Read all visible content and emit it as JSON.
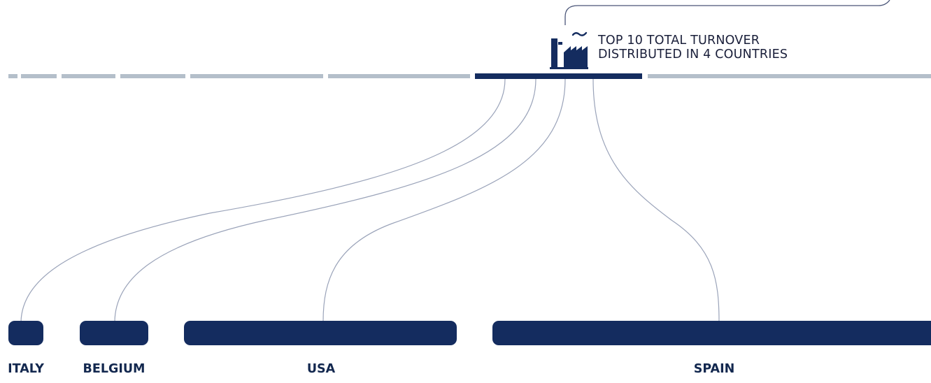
{
  "header": {
    "line1": "TOP 10 TOTAL TURNOVER",
    "line2": "DISTRIBUTED IN 4 COUNTRIES",
    "icon": "factory-icon"
  },
  "countries": [
    {
      "name": "ITALY"
    },
    {
      "name": "BELGIUM"
    },
    {
      "name": "USA"
    },
    {
      "name": "SPAIN"
    }
  ],
  "colors": {
    "navy": "#142c5f",
    "segment_gray": "#b4bfca",
    "connector": "#9aa3b9",
    "bracket": "#4a5578"
  }
}
